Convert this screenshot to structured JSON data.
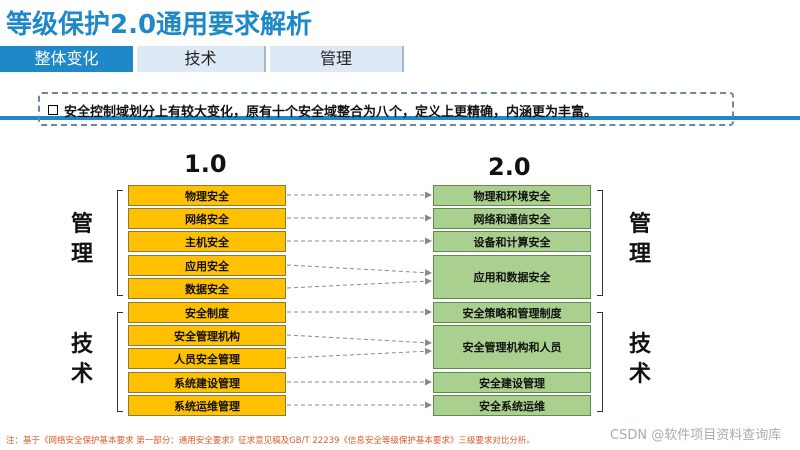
{
  "title": "等级保护2.0通用要求解析",
  "tabs": [
    "整体变化",
    "技术",
    "管理"
  ],
  "note": "安全控制域划分上有较大变化，原有十个安全域整合为八个，定义上更精确，内涵更为丰富。",
  "left": {
    "version": "1.0",
    "items": [
      "物理安全",
      "网络安全",
      "主机安全",
      "应用安全",
      "数据安全",
      "安全制度",
      "安全管理机构",
      "人员安全管理",
      "系统建设管理",
      "系统运维管理"
    ]
  },
  "right": {
    "version": "2.0",
    "items": [
      "物理和环境安全",
      "网络和通信安全",
      "设备和计算安全",
      "应用和数据安全",
      "安全策略和管理制度",
      "安全管理机构和人员",
      "安全建设管理",
      "安全系统运维"
    ]
  },
  "labels": {
    "left_top": [
      "管",
      "理"
    ],
    "left_bottom": [
      "技",
      "术"
    ],
    "right_top": [
      "管",
      "理"
    ],
    "right_bottom": [
      "技",
      "术"
    ]
  },
  "footnote": "注：基于《网络安全保护基本要求 第一部分：通用安全要求》征求意见稿及GB/T 22239《信息安全等级保护基本要求》三级要求对比分析。",
  "watermark": "CSDN @软件项目资料查询库",
  "colors": {
    "accent": "#1e88c9",
    "yellow": "#ffc000",
    "green": "#a9d08e"
  }
}
